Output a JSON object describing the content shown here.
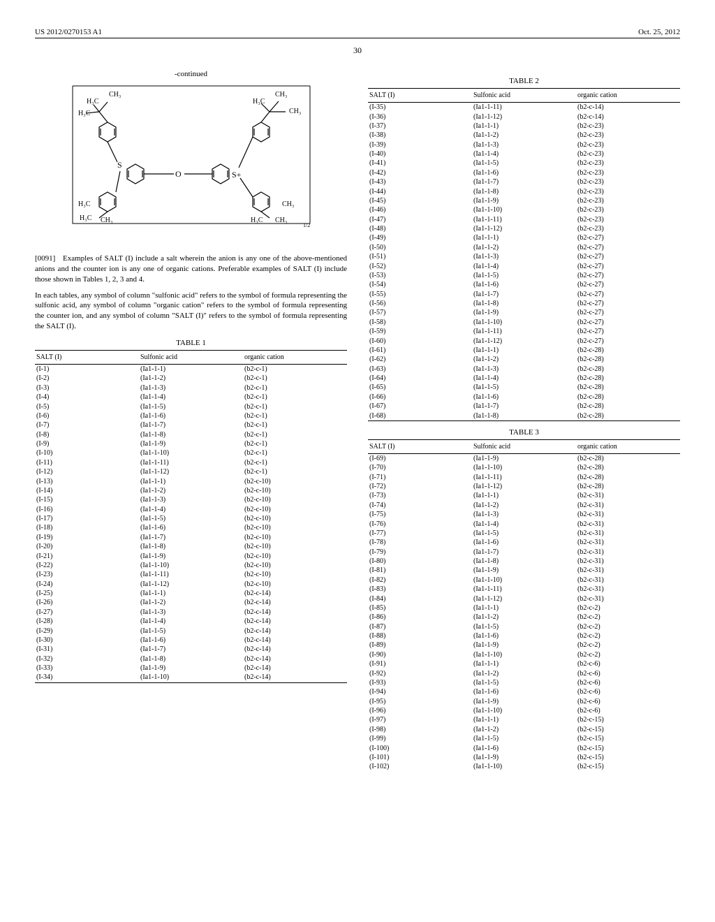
{
  "header": {
    "left": "US 2012/0270153 A1",
    "right": "Oct. 25, 2012"
  },
  "pageNumber": "30",
  "continued": "-continued",
  "paragraphs": {
    "p91_num": "[0091]",
    "p91": "Examples of SALT (I) include a salt wherein the anion is any one of the above-mentioned anions and the counter ion is any one of organic cations. Preferable examples of SALT (I) include those shown in Tables 1, 2, 3 and 4.",
    "p_note": "In each tables, any symbol of column \"sulfonic acid\" refers to the symbol of formula representing the sulfonic acid, any symbol of column \"organic cation\" refers to the symbol of formula representing the counter ion, and any symbol of column \"SALT (I)\" refers to the symbol of formula representing the SALT (I)."
  },
  "tableHeaders": {
    "salt": "SALT (I)",
    "acid": "Sulfonic acid",
    "cation": "organic cation"
  },
  "tableTitles": {
    "t1": "TABLE 1",
    "t2": "TABLE 2",
    "t3": "TABLE 3"
  },
  "table1": [
    [
      "(I-1)",
      "(Ia1-1-1)",
      "(b2-c-1)"
    ],
    [
      "(I-2)",
      "(Ia1-1-2)",
      "(b2-c-1)"
    ],
    [
      "(I-3)",
      "(Ia1-1-3)",
      "(b2-c-1)"
    ],
    [
      "(I-4)",
      "(Ia1-1-4)",
      "(b2-c-1)"
    ],
    [
      "(I-5)",
      "(Ia1-1-5)",
      "(b2-c-1)"
    ],
    [
      "(I-6)",
      "(Ia1-1-6)",
      "(b2-c-1)"
    ],
    [
      "(I-7)",
      "(Ia1-1-7)",
      "(b2-c-1)"
    ],
    [
      "(I-8)",
      "(Ia1-1-8)",
      "(b2-c-1)"
    ],
    [
      "(I-9)",
      "(Ia1-1-9)",
      "(b2-c-1)"
    ],
    [
      "(I-10)",
      "(Ia1-1-10)",
      "(b2-c-1)"
    ],
    [
      "(I-11)",
      "(Ia1-1-11)",
      "(b2-c-1)"
    ],
    [
      "(I-12)",
      "(Ia1-1-12)",
      "(b2-c-1)"
    ],
    [
      "(I-13)",
      "(Ia1-1-1)",
      "(b2-c-10)"
    ],
    [
      "(I-14)",
      "(Ia1-1-2)",
      "(b2-c-10)"
    ],
    [
      "(I-15)",
      "(Ia1-1-3)",
      "(b2-c-10)"
    ],
    [
      "(I-16)",
      "(Ia1-1-4)",
      "(b2-c-10)"
    ],
    [
      "(I-17)",
      "(Ia1-1-5)",
      "(b2-c-10)"
    ],
    [
      "(I-18)",
      "(Ia1-1-6)",
      "(b2-c-10)"
    ],
    [
      "(I-19)",
      "(Ia1-1-7)",
      "(b2-c-10)"
    ],
    [
      "(I-20)",
      "(Ia1-1-8)",
      "(b2-c-10)"
    ],
    [
      "(I-21)",
      "(Ia1-1-9)",
      "(b2-c-10)"
    ],
    [
      "(I-22)",
      "(Ia1-1-10)",
      "(b2-c-10)"
    ],
    [
      "(I-23)",
      "(Ia1-1-11)",
      "(b2-c-10)"
    ],
    [
      "(I-24)",
      "(Ia1-1-12)",
      "(b2-c-10)"
    ],
    [
      "(I-25)",
      "(Ia1-1-1)",
      "(b2-c-14)"
    ],
    [
      "(I-26)",
      "(Ia1-1-2)",
      "(b2-c-14)"
    ],
    [
      "(I-27)",
      "(Ia1-1-3)",
      "(b2-c-14)"
    ],
    [
      "(I-28)",
      "(Ia1-1-4)",
      "(b2-c-14)"
    ],
    [
      "(I-29)",
      "(Ia1-1-5)",
      "(b2-c-14)"
    ],
    [
      "(I-30)",
      "(Ia1-1-6)",
      "(b2-c-14)"
    ],
    [
      "(I-31)",
      "(Ia1-1-7)",
      "(b2-c-14)"
    ],
    [
      "(I-32)",
      "(Ia1-1-8)",
      "(b2-c-14)"
    ],
    [
      "(I-33)",
      "(Ia1-1-9)",
      "(b2-c-14)"
    ],
    [
      "(I-34)",
      "(Ia1-1-10)",
      "(b2-c-14)"
    ]
  ],
  "table2": [
    [
      "(I-35)",
      "(Ia1-1-11)",
      "(b2-c-14)"
    ],
    [
      "(I-36)",
      "(Ia1-1-12)",
      "(b2-c-14)"
    ],
    [
      "(I-37)",
      "(Ia1-1-1)",
      "(b2-c-23)"
    ],
    [
      "(I-38)",
      "(Ia1-1-2)",
      "(b2-c-23)"
    ],
    [
      "(I-39)",
      "(Ia1-1-3)",
      "(b2-c-23)"
    ],
    [
      "(I-40)",
      "(Ia1-1-4)",
      "(b2-c-23)"
    ],
    [
      "(I-41)",
      "(Ia1-1-5)",
      "(b2-c-23)"
    ],
    [
      "(I-42)",
      "(Ia1-1-6)",
      "(b2-c-23)"
    ],
    [
      "(I-43)",
      "(Ia1-1-7)",
      "(b2-c-23)"
    ],
    [
      "(I-44)",
      "(Ia1-1-8)",
      "(b2-c-23)"
    ],
    [
      "(I-45)",
      "(Ia1-1-9)",
      "(b2-c-23)"
    ],
    [
      "(I-46)",
      "(Ia1-1-10)",
      "(b2-c-23)"
    ],
    [
      "(I-47)",
      "(Ia1-1-11)",
      "(b2-c-23)"
    ],
    [
      "(I-48)",
      "(Ia1-1-12)",
      "(b2-c-23)"
    ],
    [
      "(I-49)",
      "(Ia1-1-1)",
      "(b2-c-27)"
    ],
    [
      "(I-50)",
      "(Ia1-1-2)",
      "(b2-c-27)"
    ],
    [
      "(I-51)",
      "(Ia1-1-3)",
      "(b2-c-27)"
    ],
    [
      "(I-52)",
      "(Ia1-1-4)",
      "(b2-c-27)"
    ],
    [
      "(I-53)",
      "(Ia1-1-5)",
      "(b2-c-27)"
    ],
    [
      "(I-54)",
      "(Ia1-1-6)",
      "(b2-c-27)"
    ],
    [
      "(I-55)",
      "(Ia1-1-7)",
      "(b2-c-27)"
    ],
    [
      "(I-56)",
      "(Ia1-1-8)",
      "(b2-c-27)"
    ],
    [
      "(I-57)",
      "(Ia1-1-9)",
      "(b2-c-27)"
    ],
    [
      "(I-58)",
      "(Ia1-1-10)",
      "(b2-c-27)"
    ],
    [
      "(I-59)",
      "(Ia1-1-11)",
      "(b2-c-27)"
    ],
    [
      "(I-60)",
      "(Ia1-1-12)",
      "(b2-c-27)"
    ],
    [
      "(I-61)",
      "(Ia1-1-1)",
      "(b2-c-28)"
    ],
    [
      "(I-62)",
      "(Ia1-1-2)",
      "(b2-c-28)"
    ],
    [
      "(I-63)",
      "(Ia1-1-3)",
      "(b2-c-28)"
    ],
    [
      "(I-64)",
      "(Ia1-1-4)",
      "(b2-c-28)"
    ],
    [
      "(I-65)",
      "(Ia1-1-5)",
      "(b2-c-28)"
    ],
    [
      "(I-66)",
      "(Ia1-1-6)",
      "(b2-c-28)"
    ],
    [
      "(I-67)",
      "(Ia1-1-7)",
      "(b2-c-28)"
    ],
    [
      "(I-68)",
      "(Ia1-1-8)",
      "(b2-c-28)"
    ]
  ],
  "table3": [
    [
      "(I-69)",
      "(Ia1-1-9)",
      "(b2-c-28)"
    ],
    [
      "(I-70)",
      "(Ia1-1-10)",
      "(b2-c-28)"
    ],
    [
      "(I-71)",
      "(Ia1-1-11)",
      "(b2-c-28)"
    ],
    [
      "(I-72)",
      "(Ia1-1-12)",
      "(b2-c-28)"
    ],
    [
      "(I-73)",
      "(Ia1-1-1)",
      "(b2-c-31)"
    ],
    [
      "(I-74)",
      "(Ia1-1-2)",
      "(b2-c-31)"
    ],
    [
      "(I-75)",
      "(Ia1-1-3)",
      "(b2-c-31)"
    ],
    [
      "(I-76)",
      "(Ia1-1-4)",
      "(b2-c-31)"
    ],
    [
      "(I-77)",
      "(Ia1-1-5)",
      "(b2-c-31)"
    ],
    [
      "(I-78)",
      "(Ia1-1-6)",
      "(b2-c-31)"
    ],
    [
      "(I-79)",
      "(Ia1-1-7)",
      "(b2-c-31)"
    ],
    [
      "(I-80)",
      "(Ia1-1-8)",
      "(b2-c-31)"
    ],
    [
      "(I-81)",
      "(Ia1-1-9)",
      "(b2-c-31)"
    ],
    [
      "(I-82)",
      "(Ia1-1-10)",
      "(b2-c-31)"
    ],
    [
      "(I-83)",
      "(Ia1-1-11)",
      "(b2-c-31)"
    ],
    [
      "(I-84)",
      "(Ia1-1-12)",
      "(b2-c-31)"
    ],
    [
      "(I-85)",
      "(Ia1-1-1)",
      "(b2-c-2)"
    ],
    [
      "(I-86)",
      "(Ia1-1-2)",
      "(b2-c-2)"
    ],
    [
      "(I-87)",
      "(Ia1-1-5)",
      "(b2-c-2)"
    ],
    [
      "(I-88)",
      "(Ia1-1-6)",
      "(b2-c-2)"
    ],
    [
      "(I-89)",
      "(Ia1-1-9)",
      "(b2-c-2)"
    ],
    [
      "(I-90)",
      "(Ia1-1-10)",
      "(b2-c-2)"
    ],
    [
      "(I-91)",
      "(Ia1-1-1)",
      "(b2-c-6)"
    ],
    [
      "(I-92)",
      "(Ia1-1-2)",
      "(b2-c-6)"
    ],
    [
      "(I-93)",
      "(Ia1-1-5)",
      "(b2-c-6)"
    ],
    [
      "(I-94)",
      "(Ia1-1-6)",
      "(b2-c-6)"
    ],
    [
      "(I-95)",
      "(Ia1-1-9)",
      "(b2-c-6)"
    ],
    [
      "(I-96)",
      "(Ia1-1-10)",
      "(b2-c-6)"
    ],
    [
      "(I-97)",
      "(Ia1-1-1)",
      "(b2-c-15)"
    ],
    [
      "(I-98)",
      "(Ia1-1-2)",
      "(b2-c-15)"
    ],
    [
      "(I-99)",
      "(Ia1-1-5)",
      "(b2-c-15)"
    ],
    [
      "(I-100)",
      "(Ia1-1-6)",
      "(b2-c-15)"
    ],
    [
      "(I-101)",
      "(Ia1-1-9)",
      "(b2-c-15)"
    ],
    [
      "(I-102)",
      "(Ia1-1-10)",
      "(b2-c-15)"
    ]
  ]
}
